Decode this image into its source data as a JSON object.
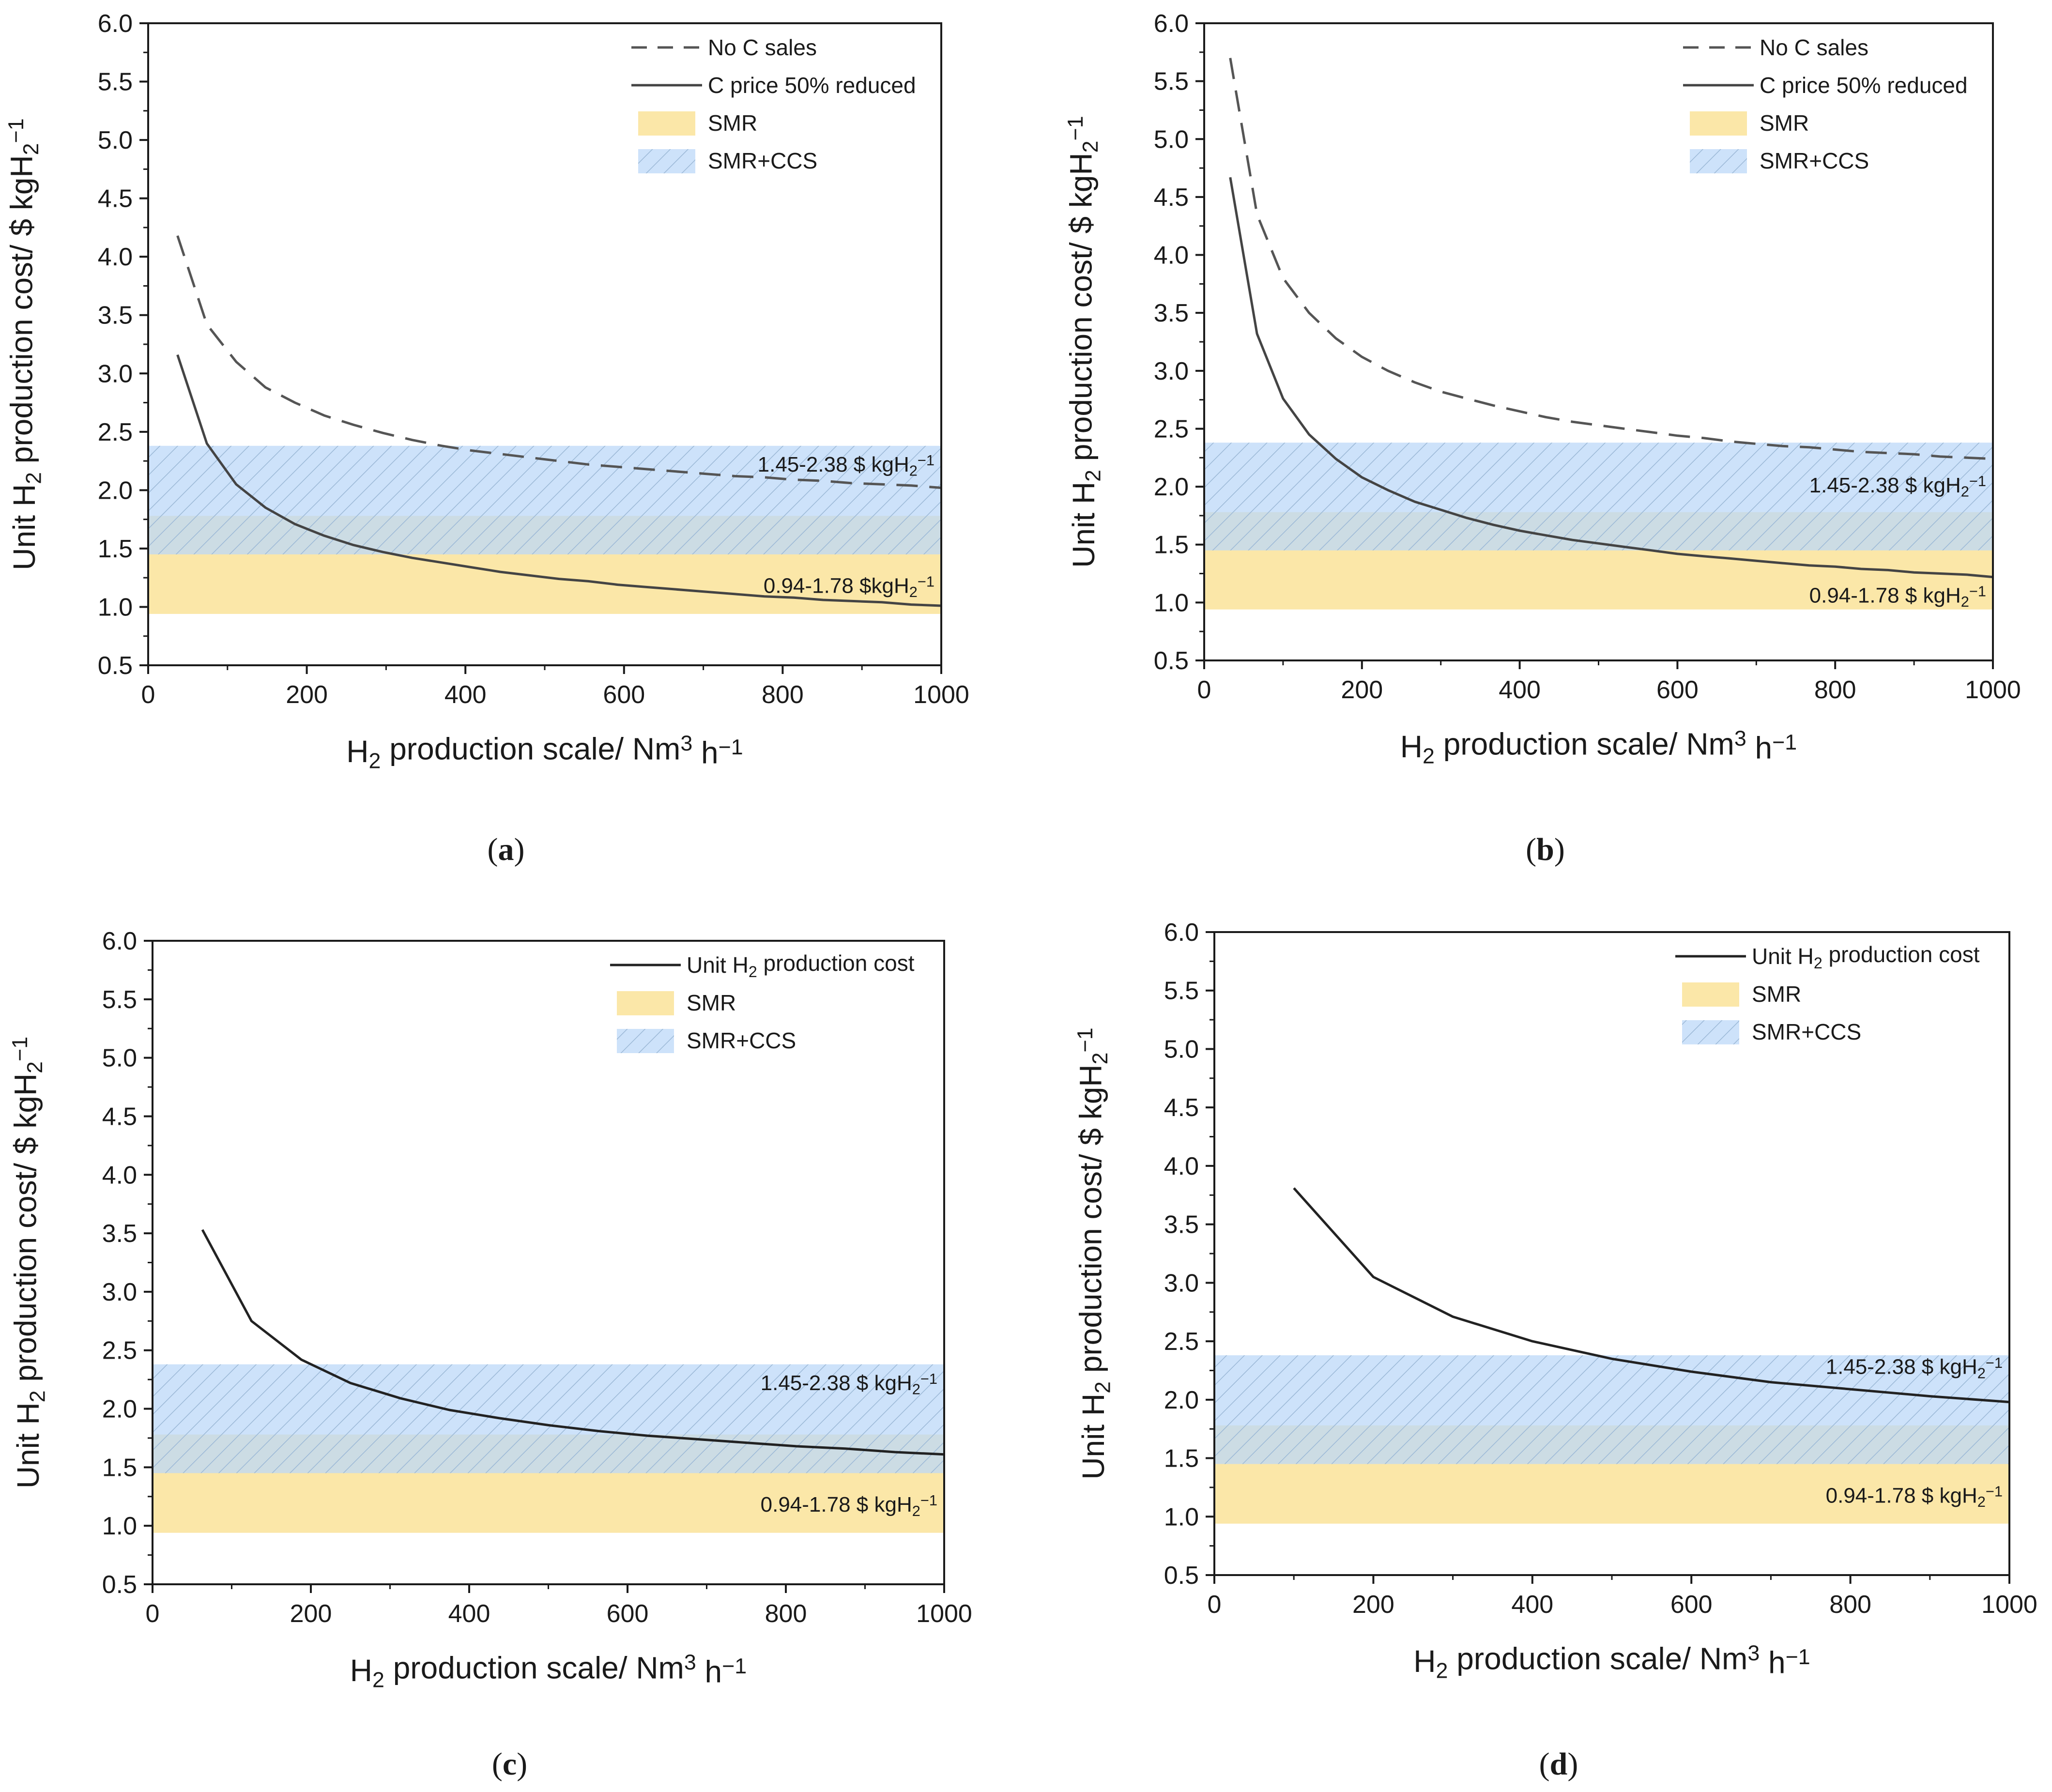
{
  "chart_data": [
    {
      "type": "line",
      "panel_label": "a",
      "xlabel": "H2 production scale/ Nm3 h−1",
      "ylabel": "Unit H2 production cost/ $ kgH2−1",
      "xlim": [
        0,
        1000
      ],
      "ylim": [
        0.5,
        6.0
      ],
      "x_ticks": [
        "0",
        "200",
        "400",
        "600",
        "800",
        "1000"
      ],
      "y_ticks": [
        "0.5",
        "1.0",
        "1.5",
        "2.0",
        "2.5",
        "3.0",
        "3.5",
        "4.0",
        "4.5",
        "5.0",
        "5.5",
        "6.0"
      ],
      "series": [
        {
          "name": "No C sales",
          "style": "dashed",
          "color": "#555555",
          "x": [
            37,
            74,
            111,
            148,
            185,
            222,
            259,
            296,
            333,
            370,
            407,
            444,
            481,
            518,
            555,
            592,
            629,
            666,
            703,
            740,
            777,
            814,
            851,
            888,
            925,
            962,
            1000
          ],
          "y": [
            4.18,
            3.42,
            3.1,
            2.88,
            2.75,
            2.64,
            2.56,
            2.49,
            2.43,
            2.38,
            2.34,
            2.31,
            2.28,
            2.25,
            2.22,
            2.2,
            2.18,
            2.16,
            2.14,
            2.12,
            2.11,
            2.09,
            2.08,
            2.06,
            2.05,
            2.04,
            2.02
          ]
        },
        {
          "name": "C price 50% reduced",
          "style": "solid",
          "color": "#444444",
          "x": [
            37,
            74,
            111,
            148,
            185,
            222,
            259,
            296,
            333,
            370,
            407,
            444,
            481,
            518,
            555,
            592,
            629,
            666,
            703,
            740,
            777,
            814,
            851,
            888,
            925,
            962,
            1000
          ],
          "y": [
            3.16,
            2.4,
            2.05,
            1.85,
            1.71,
            1.61,
            1.53,
            1.47,
            1.42,
            1.38,
            1.34,
            1.3,
            1.27,
            1.24,
            1.22,
            1.19,
            1.17,
            1.15,
            1.13,
            1.11,
            1.09,
            1.08,
            1.06,
            1.05,
            1.04,
            1.02,
            1.01
          ]
        }
      ],
      "legend": [
        "No C sales",
        "C price 50% reduced",
        "SMR",
        "SMR+CCS"
      ],
      "bands": [
        {
          "name": "SMR",
          "range": [
            0.94,
            1.78
          ],
          "label": "0.94-1.78 $kgH2−1",
          "color": "#fbe7a8"
        },
        {
          "name": "SMR+CCS",
          "range": [
            1.45,
            2.38
          ],
          "label": "1.45-2.38 $ kgH2−1",
          "color": "#bcd8f8"
        }
      ]
    },
    {
      "type": "line",
      "panel_label": "b",
      "xlabel": "H2 production scale/ Nm3 h−1",
      "ylabel": "Unit H2 production cost/ $ kgH2−1",
      "xlim": [
        0,
        1000
      ],
      "ylim": [
        0.5,
        6.0
      ],
      "x_ticks": [
        "0",
        "200",
        "400",
        "600",
        "800",
        "1000"
      ],
      "y_ticks": [
        "0.5",
        "1.0",
        "1.5",
        "2.0",
        "2.5",
        "3.0",
        "3.5",
        "4.0",
        "4.5",
        "5.0",
        "5.5",
        "6.0"
      ],
      "series": [
        {
          "name": "No C sales",
          "style": "dashed",
          "color": "#555555",
          "x": [
            33,
            67,
            100,
            133,
            167,
            200,
            233,
            267,
            300,
            333,
            367,
            400,
            433,
            467,
            500,
            533,
            567,
            600,
            633,
            667,
            700,
            733,
            767,
            800,
            833,
            867,
            900,
            933,
            967,
            1000
          ],
          "y": [
            5.7,
            4.35,
            3.8,
            3.5,
            3.28,
            3.12,
            3.0,
            2.9,
            2.82,
            2.76,
            2.7,
            2.65,
            2.6,
            2.56,
            2.53,
            2.5,
            2.47,
            2.44,
            2.42,
            2.39,
            2.37,
            2.35,
            2.34,
            2.32,
            2.3,
            2.29,
            2.28,
            2.26,
            2.25,
            2.24
          ]
        },
        {
          "name": "C price 50% reduced",
          "style": "solid",
          "color": "#444444",
          "x": [
            33,
            67,
            100,
            133,
            167,
            200,
            233,
            267,
            300,
            333,
            367,
            400,
            433,
            467,
            500,
            533,
            567,
            600,
            633,
            667,
            700,
            733,
            767,
            800,
            833,
            867,
            900,
            933,
            967,
            1000
          ],
          "y": [
            4.67,
            3.32,
            2.76,
            2.45,
            2.24,
            2.08,
            1.97,
            1.87,
            1.8,
            1.73,
            1.67,
            1.62,
            1.58,
            1.54,
            1.51,
            1.48,
            1.45,
            1.42,
            1.4,
            1.38,
            1.36,
            1.34,
            1.32,
            1.31,
            1.29,
            1.28,
            1.26,
            1.25,
            1.24,
            1.22
          ]
        }
      ],
      "legend": [
        "No C sales",
        "C price 50% reduced",
        "SMR",
        "SMR+CCS"
      ],
      "bands": [
        {
          "name": "SMR",
          "range": [
            0.94,
            1.78
          ],
          "label": "0.94-1.78 $ kgH2−1",
          "color": "#fbe7a8"
        },
        {
          "name": "SMR+CCS",
          "range": [
            1.45,
            2.38
          ],
          "label": "1.45-2.38 $ kgH2−1",
          "color": "#bcd8f8"
        }
      ]
    },
    {
      "type": "line",
      "panel_label": "c",
      "xlabel": "H2 production scale/ Nm3 h−1",
      "ylabel": "Unit H2 production cost/ $ kgH2−1",
      "xlim": [
        0,
        1000
      ],
      "ylim": [
        0.5,
        6.0
      ],
      "x_ticks": [
        "0",
        "200",
        "400",
        "600",
        "800",
        "1000"
      ],
      "y_ticks": [
        "0.5",
        "1.0",
        "1.5",
        "2.0",
        "2.5",
        "3.0",
        "3.5",
        "4.0",
        "4.5",
        "5.0",
        "5.5",
        "6.0"
      ],
      "series": [
        {
          "name": "Unit H2 production cost",
          "style": "solid",
          "color": "#222222",
          "x": [
            63,
            125,
            188,
            250,
            313,
            375,
            438,
            500,
            563,
            625,
            688,
            750,
            813,
            875,
            938,
            1000
          ],
          "y": [
            3.53,
            2.75,
            2.42,
            2.22,
            2.09,
            1.99,
            1.92,
            1.86,
            1.81,
            1.77,
            1.74,
            1.71,
            1.68,
            1.66,
            1.63,
            1.61
          ]
        }
      ],
      "legend": [
        "Unit H2 production cost",
        "SMR",
        "SMR+CCS"
      ],
      "bands": [
        {
          "name": "SMR",
          "range": [
            0.94,
            1.78
          ],
          "label": "0.94-1.78 $ kgH2−1",
          "color": "#fbe7a8"
        },
        {
          "name": "SMR+CCS",
          "range": [
            1.45,
            2.38
          ],
          "label": "1.45-2.38 $ kgH2−1",
          "color": "#bcd8f8"
        }
      ]
    },
    {
      "type": "line",
      "panel_label": "d",
      "xlabel": "H2 production scale/ Nm3 h−1",
      "ylabel": "Unit H2 production cost/ $ kgH2−1",
      "xlim": [
        0,
        1000
      ],
      "ylim": [
        0.5,
        6.0
      ],
      "x_ticks": [
        "0",
        "200",
        "400",
        "600",
        "800",
        "1000"
      ],
      "y_ticks": [
        "0.5",
        "1.0",
        "1.5",
        "2.0",
        "2.5",
        "3.0",
        "3.5",
        "4.0",
        "4.5",
        "5.0",
        "5.5",
        "6.0"
      ],
      "series": [
        {
          "name": "Unit H2 production cost",
          "style": "solid",
          "color": "#222222",
          "x": [
            100,
            200,
            300,
            400,
            500,
            600,
            700,
            800,
            900,
            1000
          ],
          "y": [
            3.81,
            3.05,
            2.71,
            2.5,
            2.35,
            2.24,
            2.15,
            2.09,
            2.03,
            1.98
          ]
        }
      ],
      "legend": [
        "Unit H2 production cost",
        "SMR",
        "SMR+CCS"
      ],
      "bands": [
        {
          "name": "SMR",
          "range": [
            0.94,
            1.78
          ],
          "label": "0.94-1.78 $ kgH2−1",
          "color": "#fbe7a8"
        },
        {
          "name": "SMR+CCS",
          "range": [
            1.45,
            2.38
          ],
          "label": "1.45-2.38 $ kgH2−1",
          "color": "#bcd8f8"
        }
      ]
    }
  ]
}
